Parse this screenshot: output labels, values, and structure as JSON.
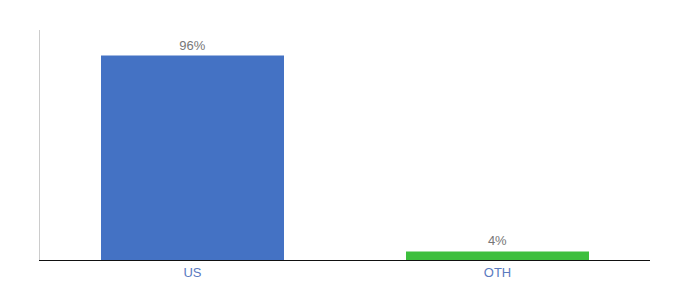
{
  "chart_data": {
    "type": "bar",
    "categories": [
      "US",
      "OTH"
    ],
    "values": [
      96,
      4
    ],
    "value_labels": [
      "96%",
      "4%"
    ],
    "colors": [
      "#4472c4",
      "#3dbf3d"
    ],
    "data_labels": true,
    "ylim": [
      0,
      108
    ],
    "yticks": [],
    "grid": false,
    "tick_labels": "x"
  }
}
